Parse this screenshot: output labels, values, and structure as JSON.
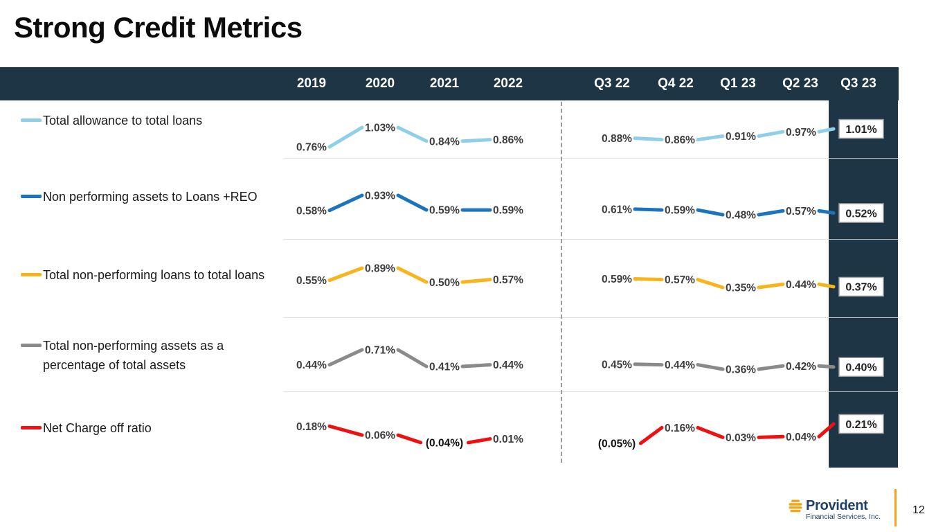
{
  "slide": {
    "title": "Strong Credit Metrics",
    "page_number": "12"
  },
  "columns": {
    "annual": [
      "2019",
      "2020",
      "2021",
      "2022"
    ],
    "quarterly": [
      "Q3 22",
      "Q4 22",
      "Q1 23",
      "Q2 23",
      "Q3 23"
    ]
  },
  "metrics": [
    {
      "legend": "Total allowance to total loans",
      "color": "#8fd0e8",
      "annual": [
        "0.76%",
        "1.03%",
        "0.84%",
        "0.86%"
      ],
      "quarterly": [
        "0.88%",
        "0.86%",
        "0.91%",
        "0.97%"
      ],
      "latest": "1.01%"
    },
    {
      "legend": "Non performing assets to Loans +REO",
      "color": "#1c74bc",
      "annual": [
        "0.58%",
        "0.93%",
        "0.59%",
        "0.59%"
      ],
      "quarterly": [
        "0.61%",
        "0.59%",
        "0.48%",
        "0.57%"
      ],
      "latest": "0.52%"
    },
    {
      "legend": "Total non-performing loans to total loans",
      "color": "#f6b51d",
      "annual": [
        "0.55%",
        "0.89%",
        "0.50%",
        "0.57%"
      ],
      "quarterly": [
        "0.59%",
        "0.57%",
        "0.35%",
        "0.44%"
      ],
      "latest": "0.37%"
    },
    {
      "legend": "Total non-performing assets as a percentage of total assets",
      "color": "#8a8a8a",
      "annual": [
        "0.44%",
        "0.71%",
        "0.41%",
        "0.44%"
      ],
      "quarterly": [
        "0.45%",
        "0.44%",
        "0.36%",
        "0.42%"
      ],
      "latest": "0.40%"
    },
    {
      "legend": "Net Charge off ratio",
      "color": "#ee1111",
      "annual": [
        "0.18%",
        "0.06%",
        "(0.04%)",
        "0.01%"
      ],
      "quarterly": [
        "(0.05%)",
        "0.16%",
        "0.03%",
        "0.04%"
      ],
      "latest": "0.21%"
    }
  ],
  "footer": {
    "brand_name": "Provident",
    "brand_subtitle": "Financial Services, Inc."
  },
  "theme": {
    "dark_band": "#1d3544",
    "label_color": "#3d3d3d",
    "negative_label_color": "#111111",
    "box_border": "#a0a0a0",
    "separator": "#d9d9d9",
    "divider_dash": "#9a9a9a",
    "accent_orange": "#f5a31c",
    "brand_navy": "#1e3f66"
  },
  "chart_data": {
    "type": "line",
    "title": "Strong Credit Metrics",
    "categories": [
      "2019",
      "2020",
      "2021",
      "2022",
      "Q3 22",
      "Q4 22",
      "Q1 23",
      "Q2 23",
      "Q3 23"
    ],
    "series": [
      {
        "name": "Total allowance to total loans",
        "color": "#8fd0e8",
        "values": [
          0.76,
          1.03,
          0.84,
          0.86,
          0.88,
          0.86,
          0.91,
          0.97,
          1.01
        ]
      },
      {
        "name": "Non performing assets to Loans +REO",
        "color": "#1c74bc",
        "values": [
          0.58,
          0.93,
          0.59,
          0.59,
          0.61,
          0.59,
          0.48,
          0.57,
          0.52
        ]
      },
      {
        "name": "Total non-performing loans to total loans",
        "color": "#f6b51d",
        "values": [
          0.55,
          0.89,
          0.5,
          0.57,
          0.59,
          0.57,
          0.35,
          0.44,
          0.37
        ]
      },
      {
        "name": "Total non-performing assets as a percentage of total assets",
        "color": "#8a8a8a",
        "values": [
          0.44,
          0.71,
          0.41,
          0.44,
          0.45,
          0.44,
          0.36,
          0.42,
          0.4
        ]
      },
      {
        "name": "Net Charge off ratio",
        "color": "#ee1111",
        "values": [
          0.18,
          0.06,
          -0.04,
          0.01,
          -0.05,
          0.16,
          0.03,
          0.04,
          0.21
        ]
      }
    ],
    "value_format": "percent",
    "annotations": "negative values shown in parentheses; Q3 23 values boxed and highlighted on dark band",
    "legend_position": "left",
    "grid": "horizontal row separators only"
  }
}
